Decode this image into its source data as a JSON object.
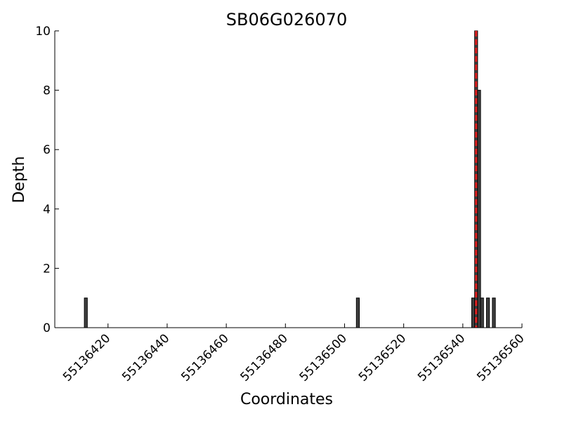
{
  "chart_data": {
    "type": "bar",
    "title": "SB06G026070",
    "x_label": "Coordinates",
    "y_label": "Depth",
    "x": [
      55136412,
      55136504,
      55136543,
      55136544,
      55136545,
      55136546,
      55136548,
      55136550
    ],
    "values": [
      1,
      1,
      1,
      10,
      8,
      1,
      1,
      1
    ],
    "color": "#404040",
    "xlim": [
      55136402,
      55136560
    ],
    "xticks": [
      55136420,
      55136440,
      55136460,
      55136480,
      55136500,
      55136520,
      55136540,
      55136560
    ],
    "ylim": [
      0,
      10
    ],
    "yticks": [
      0,
      2,
      4,
      6,
      8,
      10
    ],
    "marker_line": {
      "x": 55136544.5,
      "color": "#e02020"
    }
  }
}
